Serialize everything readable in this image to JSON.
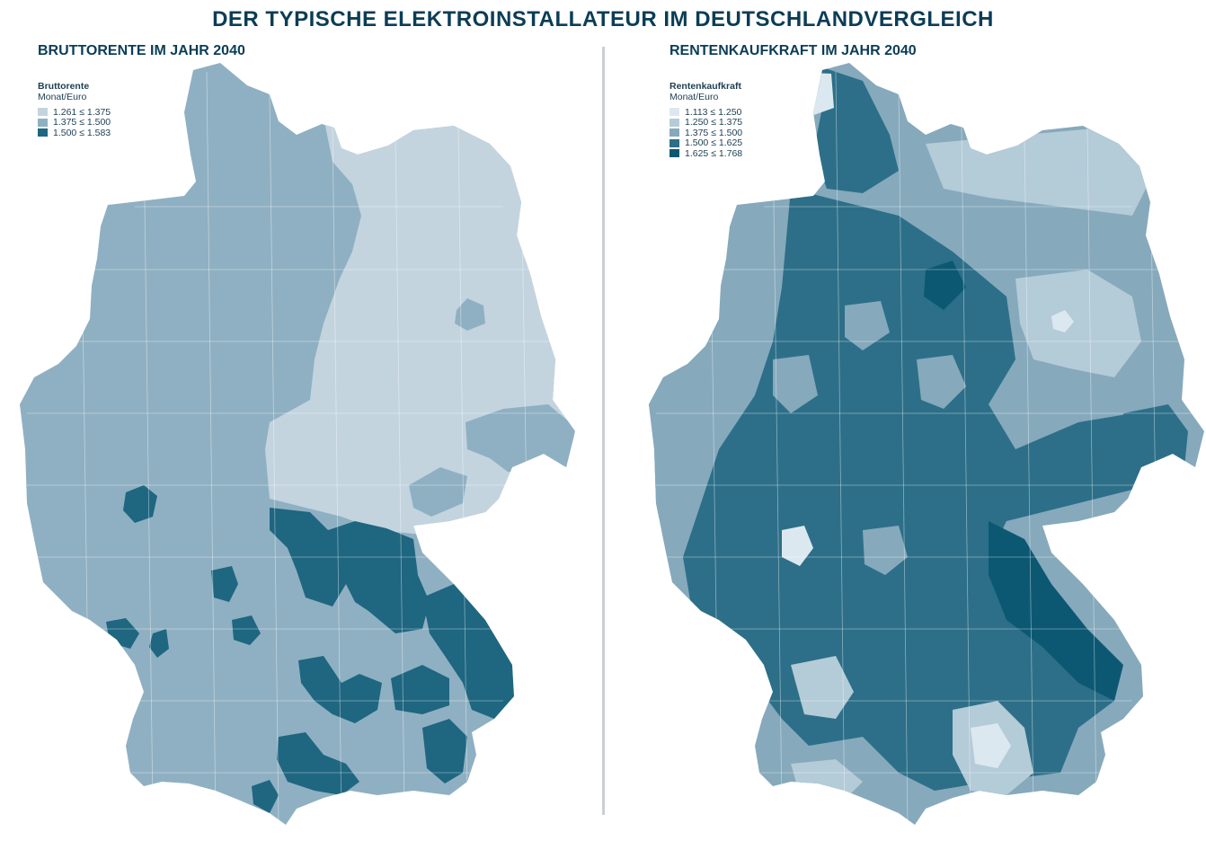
{
  "title": "DER TYPISCHE ELEKTROINSTALLATEUR IM DEUTSCHLANDVERGLEICH",
  "maps": [
    {
      "heading": "BRUTTORENTE IM JAHR 2040",
      "legend_title": "Bruttorente",
      "legend_unit": "Monat/Euro",
      "classes": [
        {
          "label": "1.261 ≤ 1.375",
          "color": "#c3d4df"
        },
        {
          "label": "1.375 ≤ 1.500",
          "color": "#8fb0c2"
        },
        {
          "label": "1.500 ≤ 1.583",
          "color": "#1f6680"
        }
      ]
    },
    {
      "heading": "RENTENKAUFKRAFT IM JAHR 2040",
      "legend_title": "Rentenkaufkraft",
      "legend_unit": "Monat/Euro",
      "classes": [
        {
          "label": "1.113 ≤ 1.250",
          "color": "#dce8ef"
        },
        {
          "label": "1.250 ≤ 1.375",
          "color": "#b4cbd8"
        },
        {
          "label": "1.375 ≤ 1.500",
          "color": "#86a9bc"
        },
        {
          "label": "1.500 ≤ 1.625",
          "color": "#2d6f88"
        },
        {
          "label": "1.625 ≤ 1.768",
          "color": "#0c5873"
        }
      ]
    }
  ]
}
